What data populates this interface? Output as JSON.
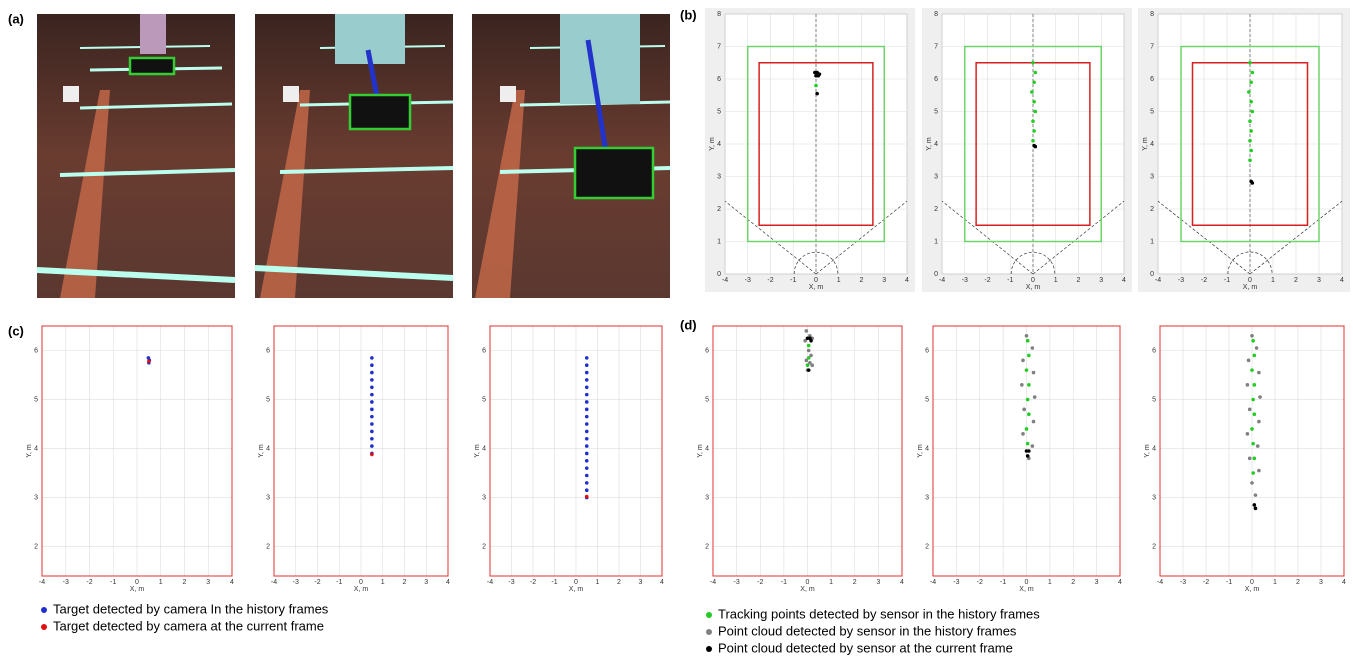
{
  "panel_labels": {
    "a": "(a)",
    "b": "(b)",
    "c": "(c)",
    "d": "(d)"
  },
  "chart_data": [
    {
      "type": "scatter",
      "xlabel": "X, m",
      "ylabel": "Y, m",
      "xlim": [
        -4,
        4
      ],
      "ylim": [
        0,
        8
      ],
      "xticks": [
        -4,
        -3,
        -2,
        -1,
        0,
        1,
        2,
        3,
        4
      ],
      "yticks": [
        0,
        1,
        2,
        3,
        4,
        5,
        6,
        7,
        8
      ],
      "grid": true,
      "background": "#efefef",
      "regions": [
        {
          "color": "#6cd66c",
          "x": [
            -3,
            3
          ],
          "y": [
            1,
            7
          ]
        },
        {
          "color": "#d62020",
          "x": [
            -2.5,
            2.5
          ],
          "y": [
            1.5,
            6.5
          ]
        }
      ],
      "series": [
        {
          "color": "#22cc22",
          "x": [
            0.0
          ],
          "y": [
            5.8
          ]
        },
        {
          "color": "#000000",
          "x": [
            -0.05,
            0.05,
            0.15,
            0.0,
            0.1,
            0.05
          ],
          "y": [
            6.2,
            6.2,
            6.15,
            6.1,
            6.1,
            5.55
          ]
        }
      ]
    },
    {
      "type": "scatter",
      "xlabel": "X, m",
      "ylabel": "Y, m",
      "xlim": [
        -4,
        4
      ],
      "ylim": [
        0,
        8
      ],
      "xticks": [
        -4,
        -3,
        -2,
        -1,
        0,
        1,
        2,
        3,
        4
      ],
      "yticks": [
        0,
        1,
        2,
        3,
        4,
        5,
        6,
        7,
        8
      ],
      "grid": true,
      "background": "#efefef",
      "regions": [
        {
          "color": "#6cd66c",
          "x": [
            -3,
            3
          ],
          "y": [
            1,
            7
          ]
        },
        {
          "color": "#d62020",
          "x": [
            -2.5,
            2.5
          ],
          "y": [
            1.5,
            6.5
          ]
        }
      ],
      "series": [
        {
          "color": "#22cc22",
          "x": [
            0.0,
            0.1,
            0.05,
            -0.05,
            0.05,
            0.1,
            0.0,
            0.05,
            0.0
          ],
          "y": [
            6.5,
            6.2,
            5.9,
            5.6,
            5.3,
            5.0,
            4.7,
            4.4,
            4.1
          ]
        },
        {
          "color": "#000000",
          "x": [
            0.05,
            0.1
          ],
          "y": [
            3.95,
            3.92
          ]
        }
      ]
    },
    {
      "type": "scatter",
      "xlabel": "X, m",
      "ylabel": "Y, m",
      "xlim": [
        -4,
        4
      ],
      "ylim": [
        0,
        8
      ],
      "xticks": [
        -4,
        -3,
        -2,
        -1,
        0,
        1,
        2,
        3,
        4
      ],
      "yticks": [
        0,
        1,
        2,
        3,
        4,
        5,
        6,
        7,
        8
      ],
      "grid": true,
      "background": "#efefef",
      "regions": [
        {
          "color": "#6cd66c",
          "x": [
            -3,
            3
          ],
          "y": [
            1,
            7
          ]
        },
        {
          "color": "#d62020",
          "x": [
            -2.5,
            2.5
          ],
          "y": [
            1.5,
            6.5
          ]
        }
      ],
      "series": [
        {
          "color": "#22cc22",
          "x": [
            0.0,
            0.1,
            0.05,
            -0.05,
            0.05,
            0.1,
            0.0,
            0.05,
            0.0,
            0.05,
            0.0
          ],
          "y": [
            6.5,
            6.2,
            5.9,
            5.6,
            5.3,
            5.0,
            4.7,
            4.4,
            4.1,
            3.8,
            3.5
          ]
        },
        {
          "color": "#000000",
          "x": [
            0.05,
            0.1
          ],
          "y": [
            2.85,
            2.8
          ]
        }
      ]
    },
    {
      "type": "scatter",
      "xlabel": "X, m",
      "ylabel": "Y, m",
      "xlim": [
        -4,
        4
      ],
      "ylim": [
        1.4,
        6.5
      ],
      "xticks": [
        -4,
        -3,
        -2,
        -1,
        0,
        1,
        2,
        3,
        4
      ],
      "yticks": [
        2,
        3,
        4,
        5,
        6
      ],
      "grid": true,
      "frame": "#e03030",
      "series": [
        {
          "name": "Target detected by camera In the history frames",
          "color": "#1f2fd0",
          "x": [
            0.48,
            0.52,
            0.5
          ],
          "y": [
            5.85,
            5.8,
            5.75
          ]
        },
        {
          "name": "Target detected by camera at the current frame",
          "color": "#e01010",
          "x": [
            0.5
          ],
          "y": [
            5.78
          ]
        }
      ]
    },
    {
      "type": "scatter",
      "xlabel": "X, m",
      "ylabel": "Y, m",
      "xlim": [
        -4,
        4
      ],
      "ylim": [
        1.4,
        6.5
      ],
      "xticks": [
        -4,
        -3,
        -2,
        -1,
        0,
        1,
        2,
        3,
        4
      ],
      "yticks": [
        2,
        3,
        4,
        5,
        6
      ],
      "grid": true,
      "frame": "#e03030",
      "series": [
        {
          "color": "#1f2fd0",
          "x": [
            0.5,
            0.5,
            0.5,
            0.5,
            0.5,
            0.5,
            0.5,
            0.5,
            0.5,
            0.5,
            0.5,
            0.5,
            0.5,
            0.5
          ],
          "y": [
            3.9,
            4.05,
            4.2,
            4.35,
            4.5,
            4.65,
            4.8,
            4.95,
            5.1,
            5.25,
            5.4,
            5.55,
            5.7,
            5.85
          ]
        },
        {
          "color": "#e01010",
          "x": [
            0.5
          ],
          "y": [
            3.88
          ]
        }
      ]
    },
    {
      "type": "scatter",
      "xlabel": "X, m",
      "ylabel": "Y, m",
      "xlim": [
        -4,
        4
      ],
      "ylim": [
        1.4,
        6.5
      ],
      "xticks": [
        -4,
        -3,
        -2,
        -1,
        0,
        1,
        2,
        3,
        4
      ],
      "yticks": [
        2,
        3,
        4,
        5,
        6
      ],
      "grid": true,
      "frame": "#e03030",
      "series": [
        {
          "color": "#1f2fd0",
          "x": [
            0.5,
            0.5,
            0.5,
            0.5,
            0.5,
            0.5,
            0.5,
            0.5,
            0.5,
            0.5,
            0.5,
            0.5,
            0.5,
            0.5,
            0.5,
            0.5,
            0.5,
            0.5,
            0.5,
            0.5
          ],
          "y": [
            3.0,
            3.15,
            3.3,
            3.45,
            3.6,
            3.75,
            3.9,
            4.05,
            4.2,
            4.35,
            4.5,
            4.65,
            4.8,
            4.95,
            5.1,
            5.25,
            5.4,
            5.55,
            5.7,
            5.85
          ]
        },
        {
          "color": "#e01010",
          "x": [
            0.5
          ],
          "y": [
            3.02
          ]
        }
      ]
    },
    {
      "type": "scatter",
      "xlabel": "X, m",
      "ylabel": "Y, m",
      "xlim": [
        -4,
        4
      ],
      "ylim": [
        1.4,
        6.5
      ],
      "xticks": [
        -4,
        -3,
        -2,
        -1,
        0,
        1,
        2,
        3,
        4
      ],
      "yticks": [
        2,
        3,
        4,
        5,
        6
      ],
      "grid": true,
      "frame": "#e03030",
      "series": [
        {
          "name": "Tracking points detected by sensor in the history frames",
          "color": "#22cc22",
          "x": [
            0.05,
            0.05,
            0.0
          ],
          "y": [
            6.1,
            5.85,
            5.7
          ]
        },
        {
          "name": "Point cloud detected by sensor in the history frames",
          "color": "#808080",
          "x": [
            -0.05,
            0.1,
            0.2,
            -0.1,
            0.05,
            0.15,
            -0.05,
            0.1,
            0.2,
            0.0
          ],
          "y": [
            6.4,
            6.3,
            6.25,
            6.2,
            6.0,
            5.9,
            5.8,
            5.75,
            5.7,
            5.6
          ]
        },
        {
          "name": "Point cloud detected by sensor at the current frame",
          "color": "#000000",
          "x": [
            0.0,
            0.1,
            0.15,
            0.05
          ],
          "y": [
            6.25,
            6.25,
            6.2,
            5.6
          ]
        }
      ]
    },
    {
      "type": "scatter",
      "xlabel": "X, m",
      "ylabel": "Y, m",
      "xlim": [
        -4,
        4
      ],
      "ylim": [
        1.4,
        6.5
      ],
      "xticks": [
        -4,
        -3,
        -2,
        -1,
        0,
        1,
        2,
        3,
        4
      ],
      "yticks": [
        2,
        3,
        4,
        5,
        6
      ],
      "grid": true,
      "frame": "#e03030",
      "series": [
        {
          "color": "#808080",
          "x": [
            0.0,
            0.25,
            -0.15,
            0.3,
            -0.2,
            0.35,
            -0.1,
            0.3,
            -0.15,
            0.25,
            0.1
          ],
          "y": [
            6.3,
            6.05,
            5.8,
            5.55,
            5.3,
            5.05,
            4.8,
            4.55,
            4.3,
            4.05,
            3.8
          ]
        },
        {
          "color": "#22cc22",
          "x": [
            0.05,
            0.1,
            0.0,
            0.1,
            0.05,
            0.1,
            0.0,
            0.05
          ],
          "y": [
            6.2,
            5.9,
            5.6,
            5.3,
            5.0,
            4.7,
            4.4,
            4.1
          ]
        },
        {
          "color": "#000000",
          "x": [
            0.0,
            0.1,
            0.05
          ],
          "y": [
            3.95,
            3.95,
            3.85
          ]
        }
      ]
    },
    {
      "type": "scatter",
      "xlabel": "X, m",
      "ylabel": "Y, m",
      "xlim": [
        -4,
        4
      ],
      "ylim": [
        1.4,
        6.5
      ],
      "xticks": [
        -4,
        -3,
        -2,
        -1,
        0,
        1,
        2,
        3,
        4
      ],
      "yticks": [
        2,
        3,
        4,
        5,
        6
      ],
      "grid": true,
      "frame": "#e03030",
      "series": [
        {
          "color": "#808080",
          "x": [
            0.0,
            0.2,
            -0.15,
            0.3,
            -0.2,
            0.35,
            -0.1,
            0.3,
            -0.2,
            0.25,
            -0.1,
            0.3,
            0.0,
            0.15
          ],
          "y": [
            6.3,
            6.05,
            5.8,
            5.55,
            5.3,
            5.05,
            4.8,
            4.55,
            4.3,
            4.05,
            3.8,
            3.55,
            3.3,
            3.05
          ]
        },
        {
          "color": "#22cc22",
          "x": [
            0.05,
            0.1,
            0.0,
            0.1,
            0.05,
            0.1,
            0.0,
            0.05,
            0.1,
            0.05
          ],
          "y": [
            6.2,
            5.9,
            5.6,
            5.3,
            5.0,
            4.7,
            4.4,
            4.1,
            3.8,
            3.5
          ]
        },
        {
          "color": "#000000",
          "x": [
            0.1,
            0.15
          ],
          "y": [
            2.85,
            2.78
          ]
        }
      ]
    }
  ]
}
